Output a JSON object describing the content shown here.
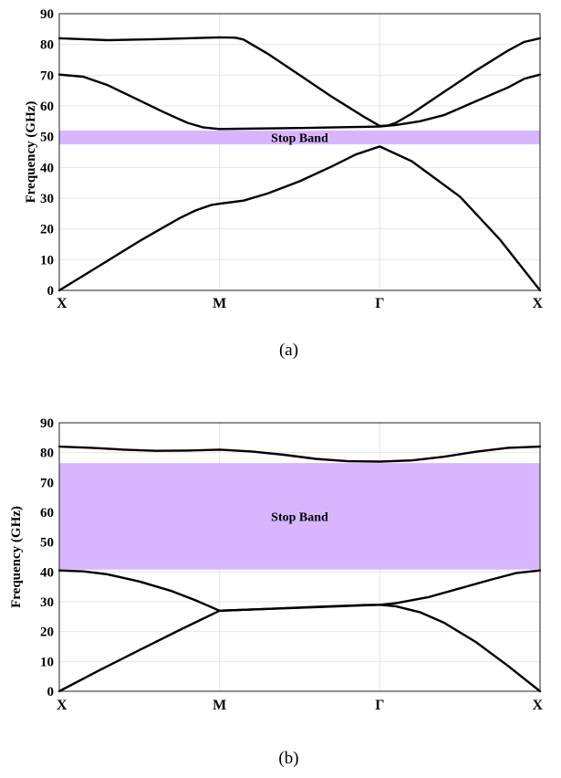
{
  "chart_data": [
    {
      "type": "line",
      "panel_caption": "(a)",
      "ylabel": "Frequency (GHz)",
      "xlabel": "",
      "categories": [
        "X",
        "M",
        "Γ",
        "X"
      ],
      "x_range": [
        0,
        3
      ],
      "ylim": [
        0,
        90
      ],
      "yticks": [
        0,
        10,
        20,
        30,
        40,
        50,
        60,
        70,
        80,
        90
      ],
      "grid": true,
      "band_color": "#d8b6ff",
      "stop_band": {
        "label": "Stop Band",
        "from": 47.5,
        "to": 52
      },
      "series": [
        {
          "x": [
            0,
            0.25,
            0.5,
            0.75,
            0.85,
            0.95,
            1.0,
            1.15,
            1.3,
            1.5,
            1.7,
            1.85,
            2.0,
            2.2,
            2.5,
            2.75,
            3.0
          ],
          "y": [
            0,
            8,
            16,
            23.5,
            26,
            27.8,
            28.2,
            29.2,
            31.5,
            35.5,
            40.3,
            44.2,
            46.8,
            42,
            30.5,
            16.5,
            0
          ]
        },
        {
          "x": [
            0,
            0.15,
            0.3,
            0.5,
            0.65,
            0.8,
            0.9,
            1.0,
            1.5,
            1.9,
            2.0,
            2.1,
            2.25,
            2.4,
            2.6,
            2.8,
            2.9,
            3.0
          ],
          "y": [
            70.2,
            69.5,
            66.8,
            61.8,
            58,
            54.5,
            53,
            52.5,
            52.8,
            53.2,
            53.3,
            53.8,
            55,
            57,
            61.5,
            66,
            68.8,
            70.2
          ]
        },
        {
          "x": [
            0,
            0.15,
            0.3,
            0.6,
            1.0,
            1.1,
            1.15,
            1.3,
            1.5,
            1.7,
            1.9,
            2.0,
            2.05,
            2.1,
            2.2,
            2.4,
            2.6,
            2.8,
            2.9,
            3.0
          ],
          "y": [
            82,
            81.7,
            81.4,
            81.7,
            82.3,
            82.2,
            81.6,
            77,
            70,
            63,
            56.5,
            53.5,
            53.6,
            54.5,
            57.5,
            64.5,
            71.5,
            78,
            80.8,
            82
          ]
        }
      ]
    },
    {
      "type": "line",
      "panel_caption": "(b)",
      "ylabel": "Frequency (GHz)",
      "xlabel": "",
      "categories": [
        "X",
        "M",
        "Γ",
        "X"
      ],
      "x_range": [
        0,
        3
      ],
      "ylim": [
        0,
        90
      ],
      "yticks": [
        0,
        10,
        20,
        30,
        40,
        50,
        60,
        70,
        80,
        90
      ],
      "grid": true,
      "band_color": "#d8b6ff",
      "stop_band": {
        "label": "Stop Band",
        "from": 40.8,
        "to": 76.5
      },
      "series": [
        {
          "x": [
            0,
            0.25,
            0.5,
            0.75,
            1.0,
            1.3,
            1.6,
            1.9,
            2.0,
            2.1,
            2.25,
            2.4,
            2.6,
            2.8,
            3.0
          ],
          "y": [
            0,
            7,
            13.8,
            20.5,
            27,
            27.6,
            28.2,
            28.8,
            29,
            28.5,
            26.5,
            23,
            16.5,
            8.5,
            0
          ]
        },
        {
          "x": [
            0,
            0.15,
            0.3,
            0.5,
            0.7,
            0.85,
            1.0,
            1.3,
            1.6,
            1.9,
            2.0,
            2.1,
            2.3,
            2.5,
            2.7,
            2.85,
            3.0
          ],
          "y": [
            40.5,
            40.2,
            39.2,
            36.8,
            33.6,
            30.5,
            27,
            27.6,
            28.3,
            28.9,
            29,
            29.5,
            31.5,
            34.5,
            37.5,
            39.6,
            40.5
          ]
        },
        {
          "x": [
            0,
            0.2,
            0.4,
            0.6,
            0.8,
            1.0,
            1.2,
            1.4,
            1.6,
            1.8,
            2.0,
            2.2,
            2.4,
            2.6,
            2.8,
            3.0
          ],
          "y": [
            82,
            81.6,
            81,
            80.6,
            80.7,
            81,
            80.4,
            79.3,
            77.9,
            77.1,
            77,
            77.4,
            78.6,
            80.3,
            81.6,
            82
          ]
        }
      ]
    }
  ]
}
